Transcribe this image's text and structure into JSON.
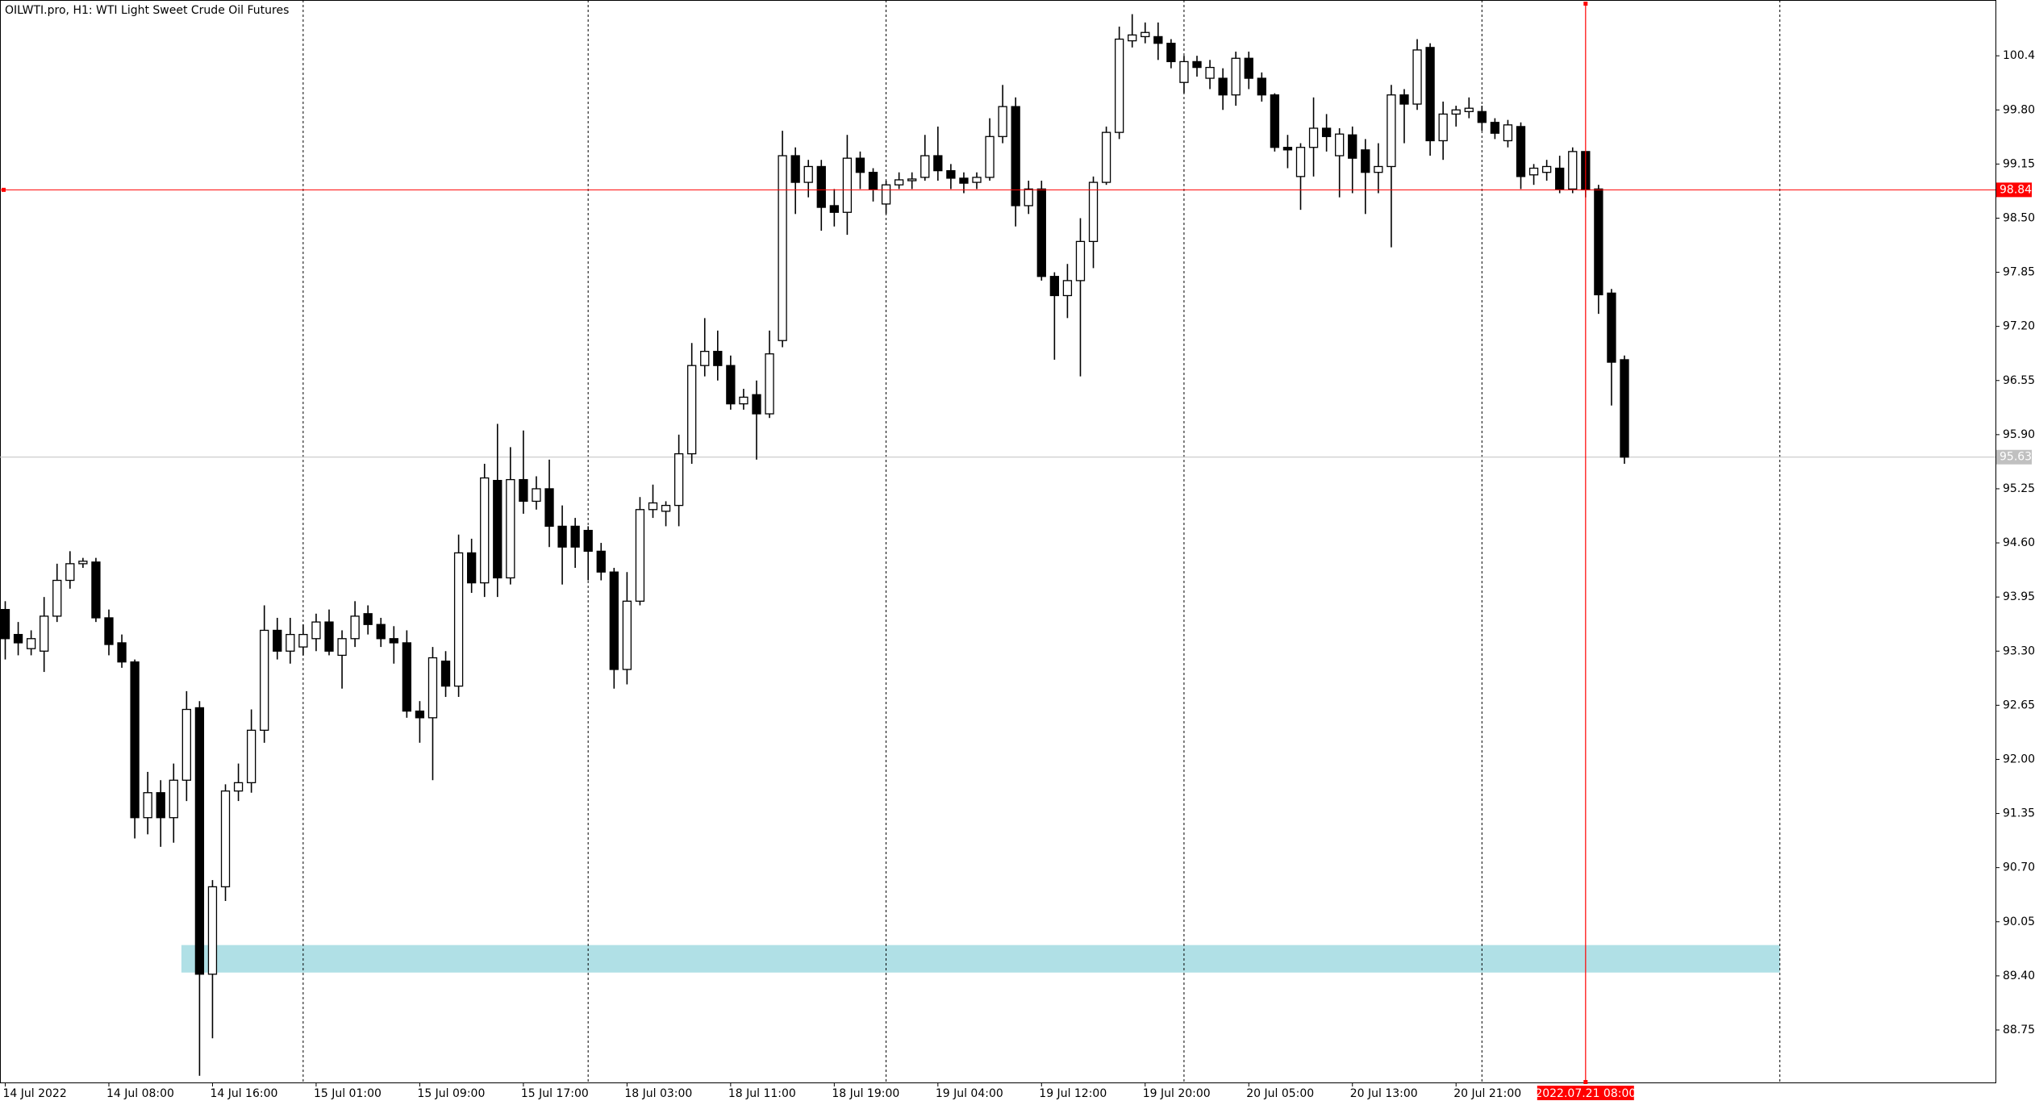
{
  "chart_data": {
    "type": "candlestick",
    "title": "OILWTI.pro, H1:  WTI Light Sweet Crude Oil Futures",
    "categories": [
      "14 Jul 2022",
      null,
      null,
      null,
      null,
      null,
      null,
      null,
      "14 Jul 08:00",
      null,
      null,
      null,
      null,
      null,
      null,
      null,
      "14 Jul 16:00",
      null,
      null,
      null,
      null,
      null,
      null,
      null,
      "15 Jul 01:00",
      null,
      null,
      null,
      null,
      null,
      null,
      null,
      "15 Jul 09:00",
      null,
      null,
      null,
      null,
      null,
      null,
      null,
      "15 Jul 17:00",
      null,
      null,
      null,
      null,
      null,
      null,
      null,
      "18 Jul 03:00",
      null,
      null,
      null,
      null,
      null,
      null,
      null,
      "18 Jul 11:00",
      null,
      null,
      null,
      null,
      null,
      null,
      null,
      "18 Jul 19:00",
      null,
      null,
      null,
      null,
      null,
      null,
      null,
      "19 Jul 04:00",
      null,
      null,
      null,
      null,
      null,
      null,
      null,
      "19 Jul 12:00",
      null,
      null,
      null,
      null,
      null,
      null,
      null,
      "19 Jul 20:00",
      null,
      null,
      null,
      null,
      null,
      null,
      null,
      "20 Jul 05:00",
      null,
      null,
      null,
      null,
      null,
      null,
      null,
      "20 Jul 13:00",
      null,
      null,
      null,
      null,
      null,
      null,
      null,
      "20 Jul 21:00",
      null,
      null,
      null,
      null,
      null,
      null,
      null,
      null,
      null,
      "2022.07.21 08:00",
      null,
      null,
      null
    ],
    "open": [
      93.8,
      93.5,
      93.33,
      93.3,
      93.72,
      94.15,
      94.35,
      94.37,
      93.7,
      93.4,
      93.17,
      91.3,
      91.6,
      91.3,
      91.75,
      92.62,
      89.42,
      90.47,
      91.62,
      91.72,
      92.35,
      93.55,
      93.3,
      93.35,
      93.45,
      93.65,
      93.25,
      93.45,
      93.75,
      93.62,
      93.45,
      93.4,
      92.58,
      92.5,
      93.18,
      92.88,
      94.48,
      94.12,
      95.35,
      94.18,
      95.36,
      95.1,
      95.25,
      94.8,
      94.8,
      94.75,
      94.5,
      94.25,
      93.08,
      93.9,
      95.0,
      94.98,
      95.05,
      95.67,
      96.73,
      96.9,
      96.73,
      96.27,
      96.38,
      96.15,
      97.03,
      99.25,
      98.93,
      99.12,
      98.65,
      98.57,
      99.22,
      99.05,
      98.67,
      98.9,
      98.95,
      98.99,
      99.25,
      99.07,
      98.98,
      98.93,
      98.99,
      99.48,
      99.84,
      98.65,
      98.85,
      97.8,
      97.57,
      97.75,
      98.22,
      98.93,
      99.53,
      100.63,
      100.68,
      100.68,
      100.6,
      100.13,
      100.38,
      100.18,
      100.18,
      99.98,
      100.42,
      100.18,
      99.98,
      99.35,
      99.0,
      99.35,
      99.58,
      99.25,
      99.5,
      99.32,
      99.05,
      99.12,
      99.98,
      99.87,
      100.55,
      99.43,
      99.75,
      99.78,
      99.78,
      99.65,
      99.43,
      99.6,
      99.02,
      99.05,
      99.1,
      98.85,
      99.3,
      98.85,
      97.6,
      96.8
    ],
    "high": [
      93.9,
      93.65,
      93.55,
      93.95,
      94.35,
      94.5,
      94.42,
      94.42,
      93.8,
      93.5,
      93.2,
      91.85,
      91.75,
      91.95,
      92.82,
      92.7,
      90.55,
      91.7,
      91.95,
      92.6,
      93.85,
      93.7,
      93.7,
      93.62,
      93.75,
      93.8,
      93.55,
      93.9,
      93.85,
      93.7,
      93.6,
      93.55,
      92.7,
      93.35,
      93.3,
      94.7,
      94.65,
      95.55,
      96.03,
      95.75,
      95.95,
      95.4,
      95.6,
      95.05,
      94.9,
      94.8,
      94.6,
      94.3,
      94.25,
      95.15,
      95.3,
      95.1,
      95.9,
      97.0,
      97.3,
      97.15,
      96.85,
      96.45,
      96.55,
      97.15,
      99.55,
      99.35,
      99.2,
      99.2,
      98.85,
      99.5,
      99.3,
      99.1,
      98.95,
      99.05,
      99.05,
      99.5,
      99.6,
      99.15,
      99.05,
      99.05,
      99.7,
      100.1,
      99.95,
      98.95,
      98.95,
      97.85,
      97.95,
      98.5,
      99.0,
      99.6,
      100.8,
      100.95,
      100.85,
      100.85,
      100.65,
      100.45,
      100.45,
      100.4,
      100.3,
      100.5,
      100.5,
      100.25,
      100.0,
      99.5,
      99.4,
      99.95,
      99.75,
      99.58,
      99.6,
      99.45,
      99.4,
      100.1,
      100.05,
      100.65,
      100.6,
      99.9,
      99.85,
      99.95,
      99.85,
      99.7,
      99.68,
      99.65,
      99.15,
      99.2,
      99.25,
      99.35,
      99.3,
      98.9,
      97.65,
      96.85
    ],
    "low": [
      93.2,
      93.25,
      93.25,
      93.05,
      93.65,
      94.05,
      94.3,
      93.65,
      93.25,
      93.1,
      91.05,
      91.1,
      90.95,
      91.0,
      91.5,
      88.2,
      88.65,
      90.3,
      91.5,
      91.6,
      92.2,
      93.2,
      93.15,
      93.25,
      93.3,
      93.25,
      92.85,
      93.35,
      93.5,
      93.35,
      93.15,
      92.5,
      92.2,
      91.75,
      92.75,
      92.75,
      94.0,
      93.95,
      93.95,
      94.1,
      94.95,
      95.0,
      94.55,
      94.1,
      94.3,
      94.15,
      94.15,
      92.85,
      92.9,
      93.85,
      94.9,
      94.8,
      94.8,
      95.55,
      96.6,
      96.55,
      96.2,
      96.2,
      95.6,
      96.1,
      96.95,
      98.55,
      98.75,
      98.35,
      98.4,
      98.3,
      98.85,
      98.7,
      98.55,
      98.85,
      98.85,
      98.95,
      98.95,
      98.85,
      98.8,
      98.85,
      98.95,
      99.4,
      98.4,
      98.55,
      97.75,
      96.8,
      97.3,
      96.6,
      97.9,
      98.9,
      99.45,
      100.55,
      100.6,
      100.4,
      100.3,
      100.0,
      100.2,
      100.05,
      99.8,
      99.85,
      100.05,
      99.9,
      99.3,
      99.1,
      98.6,
      99.0,
      99.3,
      98.75,
      98.8,
      98.55,
      98.8,
      98.15,
      99.4,
      99.8,
      99.25,
      99.2,
      99.6,
      99.7,
      99.55,
      99.45,
      99.35,
      98.85,
      98.9,
      98.95,
      98.8,
      98.8,
      98.75,
      97.35,
      96.25,
      95.55
    ],
    "close": [
      93.45,
      93.4,
      93.45,
      93.72,
      94.15,
      94.35,
      94.38,
      93.7,
      93.38,
      93.17,
      91.3,
      91.6,
      91.3,
      91.75,
      92.6,
      89.42,
      90.47,
      91.62,
      91.72,
      92.35,
      93.55,
      93.3,
      93.5,
      93.5,
      93.65,
      93.3,
      93.45,
      93.72,
      93.62,
      93.45,
      93.4,
      92.58,
      92.5,
      93.22,
      92.88,
      94.48,
      94.12,
      95.38,
      94.18,
      95.36,
      95.1,
      95.25,
      94.8,
      94.55,
      94.55,
      94.5,
      94.25,
      93.08,
      93.9,
      95.0,
      95.08,
      95.05,
      95.67,
      96.73,
      96.9,
      96.73,
      96.27,
      96.35,
      96.15,
      96.87,
      99.25,
      98.93,
      99.12,
      98.63,
      98.57,
      99.22,
      99.05,
      98.85,
      98.9,
      98.96,
      98.97,
      99.25,
      99.07,
      98.98,
      98.92,
      98.99,
      99.48,
      99.84,
      98.65,
      98.85,
      97.8,
      97.57,
      97.75,
      98.22,
      98.93,
      99.53,
      100.65,
      100.7,
      100.73,
      100.6,
      100.38,
      100.38,
      100.31,
      100.31,
      99.98,
      100.42,
      100.18,
      99.98,
      99.35,
      99.32,
      99.35,
      99.58,
      99.48,
      99.51,
      99.22,
      99.05,
      99.12,
      99.98,
      99.87,
      100.52,
      99.43,
      99.75,
      99.8,
      99.82,
      99.65,
      99.52,
      99.62,
      99.0,
      99.1,
      99.12,
      98.85,
      99.3,
      98.84,
      97.58,
      96.77,
      95.63
    ],
    "ylim": [
      88.12,
      101.12
    ],
    "yticks": [
      100.45,
      {
        "value": 99.8,
        "label": "99.80"
      },
      99.15,
      {
        "value": 98.5,
        "label": "98.50"
      },
      97.85,
      {
        "value": 97.2,
        "label": "97.20"
      },
      96.55,
      {
        "value": 95.9,
        "label": "95.90"
      },
      95.25,
      {
        "value": 94.6,
        "label": "94.60"
      },
      93.95,
      {
        "value": 93.3,
        "label": "93.30"
      },
      92.65,
      {
        "value": 92,
        "label": "92.00"
      },
      91.35,
      {
        "value": 90.7,
        "label": "90.70"
      },
      90.05,
      {
        "value": 89.4,
        "label": "89.40"
      },
      88.75
    ],
    "bid": 95.63,
    "crosshair": {
      "category": 122,
      "price": 98.84
    },
    "rectangle": {
      "top": 89.77,
      "bottom": 89.44
    },
    "up_color": "#ffffff",
    "down_color": "#000000",
    "zone_color": "#b0e0e6",
    "crosshair_color": "#ff0000",
    "bid_color": "#c0c0c0"
  }
}
